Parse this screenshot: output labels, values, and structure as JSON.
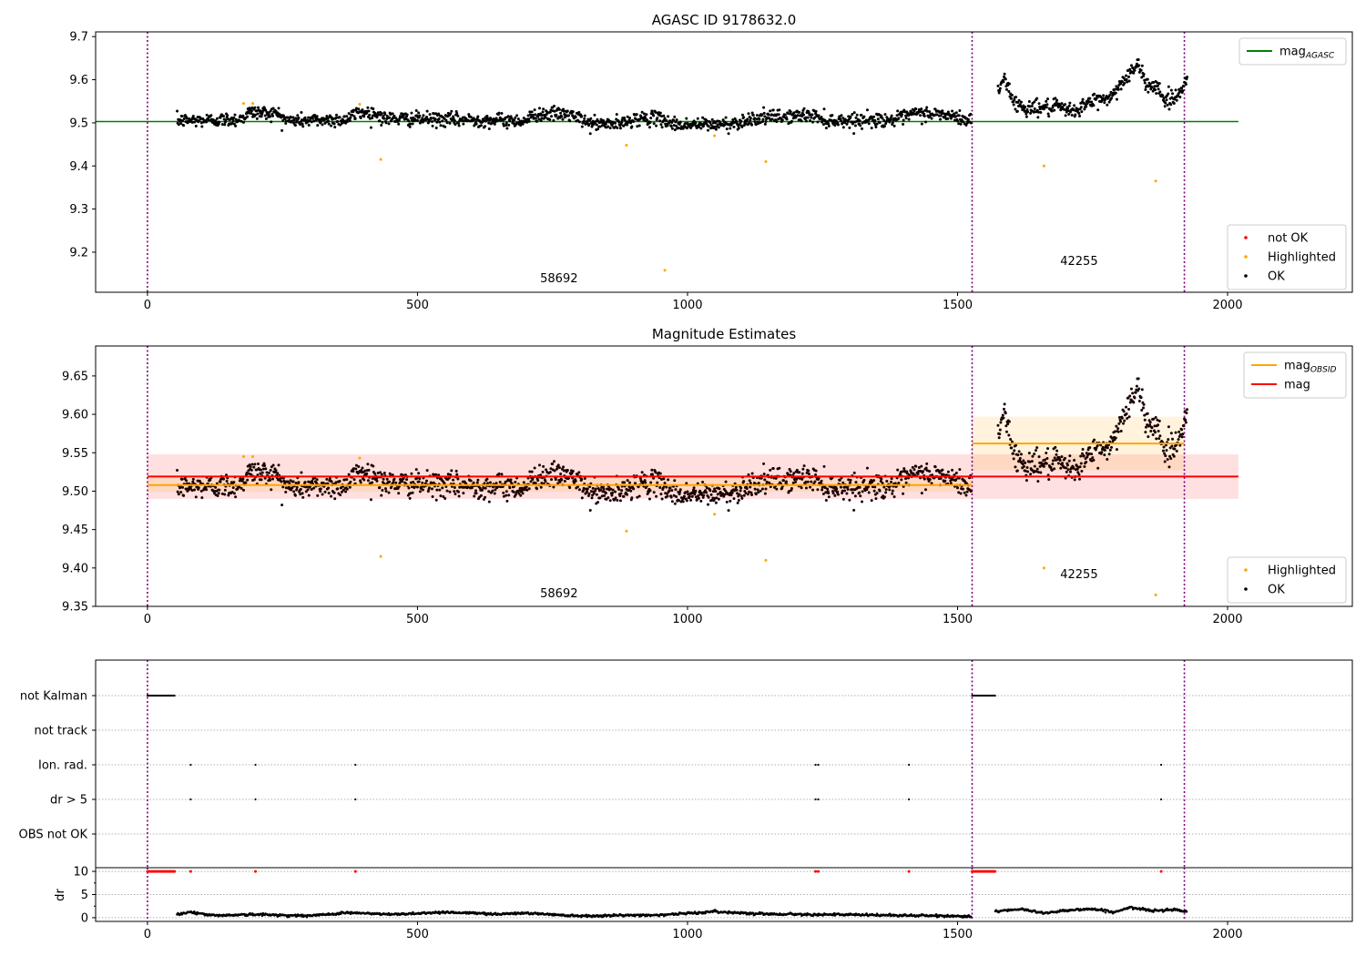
{
  "chart_data": [
    {
      "type": "scatter",
      "panel": "agasc",
      "title": "AGASC ID 9178632.0",
      "xlim": [
        -96,
        2231
      ],
      "ylim": [
        9.107,
        9.711
      ],
      "xticks": [
        0,
        500,
        1000,
        1500,
        2000
      ],
      "yticks": [
        9.2,
        9.3,
        9.4,
        9.5,
        9.6,
        9.7
      ],
      "ytick_labels": [
        "9.2",
        "9.3",
        "9.4",
        "9.5",
        "9.6",
        "9.7"
      ],
      "vlines": [
        0,
        1527,
        1920
      ],
      "hlines": [
        {
          "name": "mag_AGASC",
          "y": 9.503,
          "x": [
            -96,
            2020
          ],
          "color": "#008000"
        }
      ],
      "annotations": [
        {
          "text": "58692",
          "x": 762,
          "y": 9.13
        },
        {
          "text": "42255",
          "x": 1725,
          "y": 9.17
        }
      ],
      "legend_upper": {
        "placement": "upper-right",
        "entries": [
          {
            "text": "mag",
            "sub": "AGASC",
            "kind": "line",
            "color": "#008000"
          }
        ]
      },
      "legend_lower": {
        "placement": "lower-right",
        "entries": [
          {
            "text": "not OK",
            "kind": "dot",
            "color": "#ff0000"
          },
          {
            "text": "Highlighted",
            "kind": "dot",
            "color": "#ffa500"
          },
          {
            "text": "OK",
            "kind": "dot",
            "color": "#000000"
          }
        ]
      }
    },
    {
      "type": "scatter",
      "panel": "estimates",
      "title": "Magnitude Estimates",
      "xlim": [
        -96,
        2231
      ],
      "ylim": [
        9.35,
        9.689
      ],
      "xticks": [
        0,
        500,
        1000,
        1500,
        2000
      ],
      "yticks": [
        9.35,
        9.4,
        9.45,
        9.5,
        9.55,
        9.6,
        9.65
      ],
      "ytick_labels": [
        "9.35",
        "9.40",
        "9.45",
        "9.50",
        "9.55",
        "9.60",
        "9.65"
      ],
      "vlines": [
        0,
        1527,
        1920
      ],
      "bands": [
        {
          "name": "mag",
          "x": [
            0,
            2020
          ],
          "y": 9.519,
          "lo": 9.49,
          "hi": 9.548,
          "color": "#ff0000"
        },
        {
          "name": "mag_OBSID-1",
          "x": [
            0,
            1527
          ],
          "y": 9.508,
          "lo": 9.499,
          "hi": 9.52,
          "color": "#ffa500"
        },
        {
          "name": "mag_OBSID-2",
          "x": [
            1527,
            1920
          ],
          "y": 9.562,
          "lo": 9.527,
          "hi": 9.597,
          "color": "#ffa500"
        }
      ],
      "annotations": [
        {
          "text": "58692",
          "x": 762,
          "y": 9.362
        },
        {
          "text": "42255",
          "x": 1725,
          "y": 9.387
        }
      ],
      "legend_upper": {
        "placement": "upper-right",
        "entries": [
          {
            "text": "mag",
            "sub": "OBSID",
            "kind": "line",
            "color": "#ffa500"
          },
          {
            "text": "mag",
            "kind": "line",
            "color": "#ff0000"
          }
        ]
      },
      "legend_lower": {
        "placement": "lower-right",
        "entries": [
          {
            "text": "Highlighted",
            "kind": "dot",
            "color": "#ffa500"
          },
          {
            "text": "OK",
            "kind": "dot",
            "color": "#000000"
          }
        ]
      }
    },
    {
      "type": "scatter",
      "panel": "flags",
      "xlim": [
        -96,
        2231
      ],
      "categories": [
        "not Kalman",
        "not track",
        "Ion. rad.",
        "dr > 5",
        "OBS not OK"
      ],
      "vlines": [
        0,
        1527,
        1920
      ],
      "flag_points": {
        "not Kalman": [
          [
            0,
            50
          ],
          [
            1527,
            1570
          ]
        ],
        "not track": [],
        "Ion. rad.": [
          80,
          200,
          385,
          1237,
          1242,
          1410,
          1877
        ],
        "dr > 5": [
          80,
          200,
          385,
          1237,
          1242,
          1410,
          1877
        ],
        "OBS not OK": []
      }
    },
    {
      "type": "scatter",
      "panel": "dr",
      "ylabel": "dr",
      "xlim": [
        -96,
        2231
      ],
      "ylim": [
        -0.8,
        10.8
      ],
      "xticks": [
        0,
        500,
        1000,
        1500,
        2000
      ],
      "yticks": [
        0,
        5,
        10
      ],
      "ytick_labels": [
        "0",
        "5",
        "10"
      ],
      "vlines": [
        0,
        1527,
        1920
      ],
      "red_points_at_10": [
        [
          0,
          50
        ],
        [
          1527,
          1570
        ],
        80,
        200,
        385,
        1237,
        1242,
        1410,
        1877
      ],
      "trend": [
        [
          55,
          0.8
        ],
        [
          80,
          1.2
        ],
        [
          120,
          0.5
        ],
        [
          200,
          0.7
        ],
        [
          300,
          0.4
        ],
        [
          370,
          1.1
        ],
        [
          450,
          0.7
        ],
        [
          550,
          1.2
        ],
        [
          650,
          0.8
        ],
        [
          700,
          1.0
        ],
        [
          800,
          0.4
        ],
        [
          950,
          0.6
        ],
        [
          1050,
          1.3
        ],
        [
          1150,
          0.8
        ],
        [
          1250,
          0.7
        ],
        [
          1400,
          0.5
        ],
        [
          1525,
          0.3
        ],
        null,
        [
          1570,
          1.4
        ],
        [
          1620,
          1.8
        ],
        [
          1660,
          1.0
        ],
        [
          1700,
          1.6
        ],
        [
          1750,
          1.9
        ],
        [
          1790,
          1.2
        ],
        [
          1820,
          2.2
        ],
        [
          1860,
          1.5
        ],
        [
          1900,
          1.8
        ],
        [
          1925,
          1.4
        ]
      ]
    }
  ],
  "series": {
    "ok_trend": [
      [
        55,
        9.505
      ],
      [
        170,
        9.508
      ],
      [
        190,
        9.525
      ],
      [
        240,
        9.522
      ],
      [
        260,
        9.505
      ],
      [
        370,
        9.508
      ],
      [
        390,
        9.525
      ],
      [
        420,
        9.522
      ],
      [
        440,
        9.51
      ],
      [
        700,
        9.505
      ],
      [
        720,
        9.52
      ],
      [
        780,
        9.52
      ],
      [
        820,
        9.498
      ],
      [
        880,
        9.497
      ],
      [
        900,
        9.51
      ],
      [
        950,
        9.51
      ],
      [
        980,
        9.495
      ],
      [
        1080,
        9.497
      ],
      [
        1120,
        9.51
      ],
      [
        1230,
        9.518
      ],
      [
        1260,
        9.505
      ],
      [
        1390,
        9.508
      ],
      [
        1420,
        9.522
      ],
      [
        1470,
        9.52
      ],
      [
        1525,
        9.505
      ],
      null,
      [
        1575,
        9.57
      ],
      [
        1588,
        9.61
      ],
      [
        1600,
        9.555
      ],
      [
        1620,
        9.535
      ],
      [
        1690,
        9.535
      ],
      [
        1710,
        9.525
      ],
      [
        1750,
        9.55
      ],
      [
        1785,
        9.56
      ],
      [
        1810,
        9.605
      ],
      [
        1835,
        9.632
      ],
      [
        1850,
        9.59
      ],
      [
        1870,
        9.585
      ],
      [
        1885,
        9.55
      ],
      [
        1905,
        9.56
      ],
      [
        1925,
        9.6
      ]
    ],
    "highlighted": [
      [
        178,
        9.545
      ],
      [
        195,
        9.545
      ],
      [
        393,
        9.543
      ],
      [
        432,
        9.415
      ],
      [
        887,
        9.448
      ],
      [
        958,
        9.158
      ],
      [
        1050,
        9.47
      ],
      [
        1145,
        9.41
      ],
      [
        1660,
        9.4
      ],
      [
        1867,
        9.365
      ]
    ]
  }
}
